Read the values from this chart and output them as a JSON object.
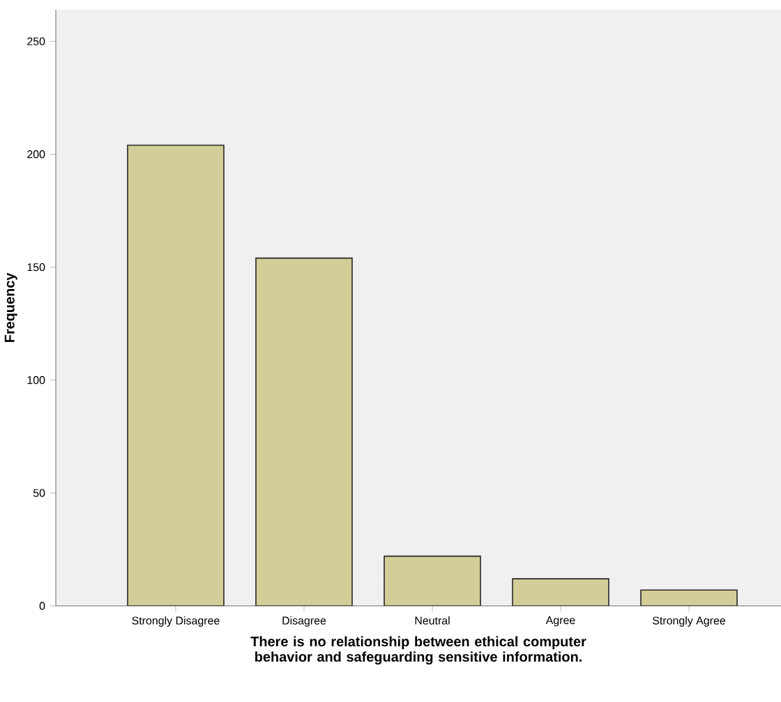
{
  "chart_data": {
    "type": "bar",
    "xlabel": "There is no relationship between ethical computer behavior and safeguarding sensitive information.",
    "ylabel": "Frequency",
    "categories": [
      "Strongly Disagree",
      "Disagree",
      "Neutral",
      "Agree",
      "Strongly Agree"
    ],
    "values": [
      204,
      154,
      22,
      12,
      7
    ],
    "color": "#d3ce97",
    "ylim": [
      0,
      264
    ],
    "yticks": [
      0,
      50,
      100,
      150,
      200,
      250
    ]
  }
}
